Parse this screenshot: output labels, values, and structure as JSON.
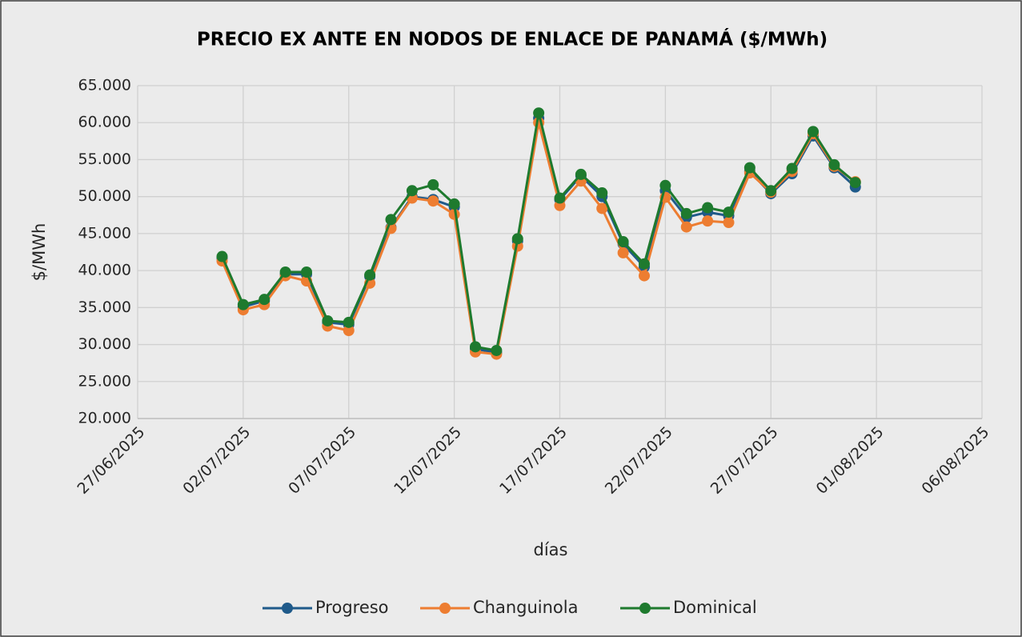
{
  "chart_data": {
    "type": "line",
    "title": "PRECIO EX ANTE EN NODOS DE ENLACE DE PANAMÁ ($/MWh)",
    "x_label": "días",
    "y_label": "$/MWh",
    "x": [
      "01/07/2025",
      "02/07/2025",
      "03/07/2025",
      "04/07/2025",
      "05/07/2025",
      "06/07/2025",
      "07/07/2025",
      "08/07/2025",
      "09/07/2025",
      "10/07/2025",
      "11/07/2025",
      "12/07/2025",
      "13/07/2025",
      "14/07/2025",
      "15/07/2025",
      "16/07/2025",
      "17/07/2025",
      "18/07/2025",
      "19/07/2025",
      "20/07/2025",
      "21/07/2025",
      "22/07/2025",
      "23/07/2025",
      "24/07/2025",
      "25/07/2025",
      "26/07/2025",
      "27/07/2025",
      "28/07/2025",
      "29/07/2025",
      "30/07/2025",
      "31/07/2025"
    ],
    "series": [
      {
        "name": "Progreso",
        "color": "#1f5a8a",
        "values": [
          41.7,
          35.1,
          35.9,
          39.5,
          39.5,
          33.0,
          32.7,
          39.2,
          45.8,
          50.0,
          49.6,
          48.6,
          29.4,
          28.9,
          44.0,
          60.6,
          49.6,
          52.8,
          50.0,
          43.6,
          40.5,
          50.8,
          47.2,
          47.9,
          47.4,
          53.4,
          50.4,
          53.1,
          58.2,
          53.9,
          51.3
        ]
      },
      {
        "name": "Changuinola",
        "color": "#ed7d31",
        "values": [
          41.3,
          34.7,
          35.4,
          39.3,
          38.6,
          32.5,
          31.9,
          38.3,
          45.7,
          49.8,
          49.4,
          47.6,
          29.0,
          28.7,
          43.3,
          60.0,
          48.8,
          52.1,
          48.4,
          42.4,
          39.3,
          49.9,
          45.9,
          46.7,
          46.5,
          53.2,
          50.6,
          53.4,
          58.5,
          54.1,
          52.0
        ]
      },
      {
        "name": "Dominical",
        "color": "#1e7a2e",
        "values": [
          41.9,
          35.4,
          36.1,
          39.8,
          39.8,
          33.2,
          33.0,
          39.4,
          46.9,
          50.8,
          51.6,
          49.0,
          29.7,
          29.2,
          44.3,
          61.3,
          49.8,
          53.0,
          50.5,
          43.9,
          40.9,
          51.5,
          47.7,
          48.5,
          47.9,
          53.9,
          50.8,
          53.8,
          58.8,
          54.3,
          51.9
        ]
      }
    ],
    "xlim": [
      "27/06/2025",
      "06/08/2025"
    ],
    "xticks": [
      "27/06/2025",
      "02/07/2025",
      "07/07/2025",
      "12/07/2025",
      "17/07/2025",
      "22/07/2025",
      "27/07/2025",
      "01/08/2025",
      "06/08/2025"
    ],
    "ylim": [
      20,
      65
    ],
    "yticks": [
      {
        "value": 20,
        "label": "20.000"
      },
      {
        "value": 25,
        "label": "25.000"
      },
      {
        "value": 30,
        "label": "30.000"
      },
      {
        "value": 35,
        "label": "35.000"
      },
      {
        "value": 40,
        "label": "40.000"
      },
      {
        "value": 45,
        "label": "45.000"
      },
      {
        "value": 50,
        "label": "50.000"
      },
      {
        "value": 55,
        "label": "55.000"
      },
      {
        "value": 60,
        "label": "60.000"
      },
      {
        "value": 65,
        "label": "65.000"
      }
    ],
    "grid": true,
    "legend": "bottom"
  }
}
